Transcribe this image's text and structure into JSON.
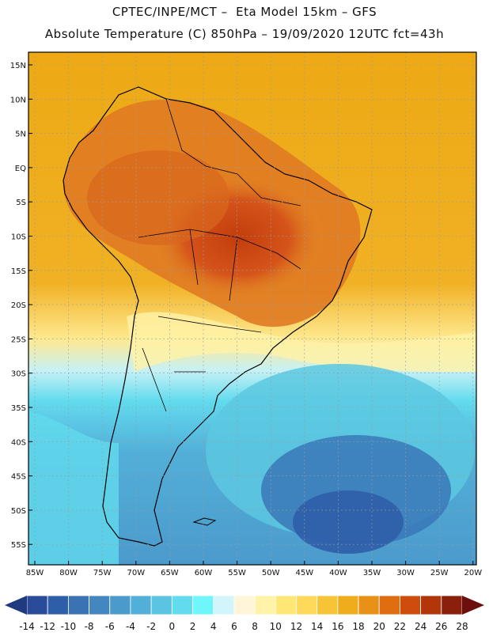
{
  "title_line1": "CPTEC/INPE/MCT –  Eta Model 15km – GFS",
  "title_line2": "Absolute Temperature (C) 850hPa – 19/09/2020 12UTC fct=43h",
  "lat_labels": [
    "15N",
    "10N",
    "5N",
    "EQ",
    "5S",
    "10S",
    "15S",
    "20S",
    "25S",
    "30S",
    "35S",
    "40S",
    "45S",
    "50S",
    "55S"
  ],
  "lon_labels": [
    "85W",
    "80W",
    "75W",
    "70W",
    "65W",
    "60W",
    "55W",
    "50W",
    "45W",
    "40W",
    "35W",
    "30W",
    "25W",
    "20W"
  ],
  "colorbar": {
    "labels": [
      "-14",
      "-12",
      "-10",
      "-8",
      "-6",
      "-4",
      "-2",
      "0",
      "2",
      "4",
      "6",
      "8",
      "10",
      "12",
      "14",
      "16",
      "18",
      "20",
      "22",
      "24",
      "26",
      "28"
    ],
    "colors": [
      "#2a4a9a",
      "#2f5ea8",
      "#3a72b4",
      "#4386c0",
      "#4b9acc",
      "#52afd8",
      "#5ac4e2",
      "#62dbee",
      "#6ff6fb",
      "#d2f5fb",
      "#fff5d8",
      "#fff3a8",
      "#ffe775",
      "#ffd95a",
      "#f7c437",
      "#efad1d",
      "#e89117",
      "#e06d10",
      "#cf4d0c",
      "#b2360a",
      "#8a1f0b"
    ],
    "low_arrow_color": "#1f3a7f",
    "high_arrow_color": "#6d0f0d"
  },
  "palette": {
    "ocean_north": "#eea914",
    "warm_core": "#d4551a",
    "hot_core": "#c9420f",
    "cool_south": "#5cc8e0",
    "cold_south": "#3a78b8",
    "coast_line": "#000000",
    "grid_line": "#9c9c9c"
  }
}
